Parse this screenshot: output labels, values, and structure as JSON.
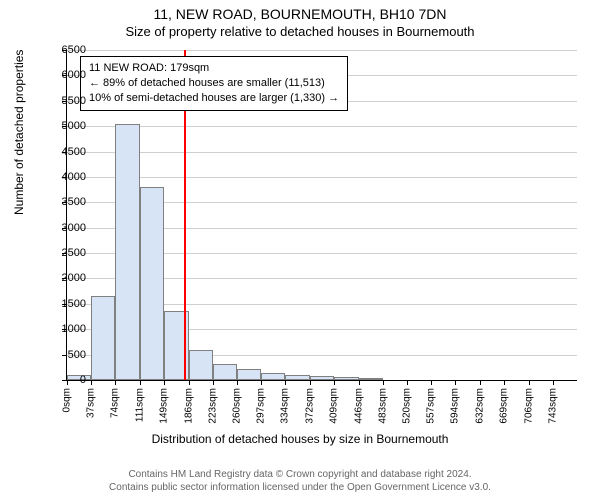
{
  "title": "11, NEW ROAD, BOURNEMOUTH, BH10 7DN",
  "subtitle": "Size of property relative to detached houses in Bournemouth",
  "ylabel": "Number of detached properties",
  "xlabel": "Distribution of detached houses by size in Bournemouth",
  "footer_line1": "Contains HM Land Registry data © Crown copyright and database right 2024.",
  "footer_line2": "Contains public sector information licensed under the Open Government Licence v3.0.",
  "chart": {
    "type": "histogram",
    "bar_fill": "#d6e4f5",
    "bar_stroke": "#808080",
    "background_color": "#ffffff",
    "grid_color": "#d0d0d0",
    "marker_color": "#ff0000",
    "ylim": [
      0,
      6500
    ],
    "yticks": [
      0,
      500,
      1000,
      1500,
      2000,
      2500,
      3000,
      3500,
      4000,
      4500,
      5000,
      5500,
      6000,
      6500
    ],
    "xticks": [
      0,
      37,
      74,
      111,
      149,
      186,
      223,
      260,
      297,
      334,
      372,
      409,
      446,
      483,
      520,
      557,
      594,
      632,
      669,
      706,
      743
    ],
    "xtick_suffix": "sqm",
    "xmax": 780,
    "bin_starts": [
      0,
      37,
      74,
      111,
      149,
      186,
      223,
      260,
      297,
      334,
      372,
      409,
      446
    ],
    "bin_width": 37,
    "values": [
      90,
      1650,
      5050,
      3800,
      1350,
      600,
      320,
      210,
      140,
      95,
      80,
      50,
      35
    ],
    "marker_x": 179,
    "info_box": {
      "line1": "11 NEW ROAD: 179sqm",
      "line2": "← 89% of detached houses are smaller (11,513)",
      "line3": "10% of semi-detached houses are larger (1,330) →"
    },
    "fontsize_title": 14,
    "fontsize_subtitle": 13,
    "fontsize_axis": 12,
    "fontsize_tick": 11,
    "fontsize_xtick": 10,
    "fontsize_info": 11,
    "fontsize_footer": 10,
    "footer_color": "#666666"
  }
}
